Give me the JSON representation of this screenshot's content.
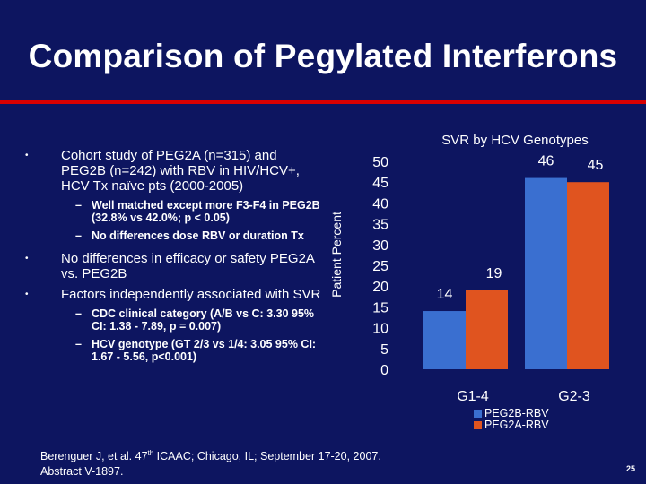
{
  "slide": {
    "title": "Comparison of Pegylated Interferons",
    "page_number": "25"
  },
  "bullets": {
    "b1": "Cohort study of PEG2A (n=315) and PEG2B (n=242) with RBV in HIV/HCV+, HCV Tx naïve pts (2000-2005)",
    "b1_sub1": "Well matched except more F3-F4 in PEG2B (32.8% vs 42.0%; p < 0.05)",
    "b1_sub2": "No differences dose RBV or duration Tx",
    "b2": "No differences in efficacy or safety PEG2A vs. PEG2B",
    "b3": "Factors independently associated with SVR",
    "b3_sub1": "CDC clinical category (A/B vs C: 3.30 95% CI: 1.38 - 7.89, p = 0.007)",
    "b3_sub2": "HCV genotype (GT 2/3 vs 1/4: 3.05 95% CI: 1.67 - 5.56, p<0.001)",
    "bullet_glyph": "•",
    "dash_glyph": "–"
  },
  "citation": {
    "line1_pre": "Berenguer J, et al. 47",
    "line1_sup": "th",
    "line1_post": " ICAAC; Chicago, IL; September 17-20, 2007.",
    "line2": "Abstract V-1897."
  },
  "chart_data": {
    "type": "bar",
    "title": "SVR by HCV Genotypes",
    "ylabel": "Patient Percent",
    "xlabel": "",
    "categories": [
      "G1-4",
      "G2-3"
    ],
    "series": [
      {
        "name": "PEG2B-RBV",
        "values": [
          14,
          46
        ],
        "color": "#3a6fd0"
      },
      {
        "name": "PEG2A-RBV",
        "values": [
          19,
          45
        ],
        "color": "#e0541f"
      }
    ],
    "yticks": [
      "0",
      "5",
      "10",
      "15",
      "20",
      "25",
      "30",
      "35",
      "40",
      "45",
      "50"
    ],
    "ylim": [
      0,
      50
    ],
    "grid": false,
    "legend_position": "bottom-right"
  }
}
